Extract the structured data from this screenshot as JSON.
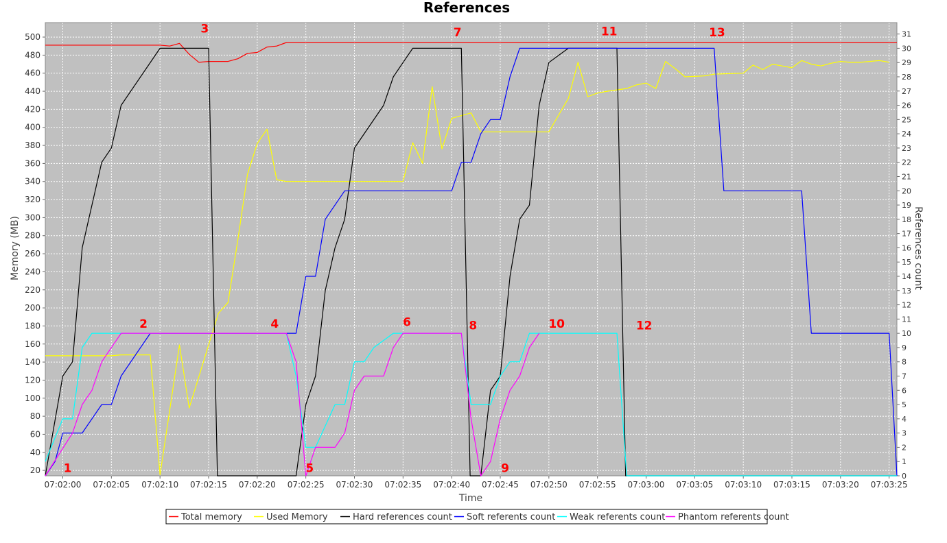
{
  "chart_data": {
    "type": "line",
    "title": "References",
    "xlabel": "Time",
    "ylabel_left": "Memory (MB)",
    "ylabel_right": "References count",
    "x_ticks": [
      "07:02:00",
      "07:02:05",
      "07:02:10",
      "07:02:15",
      "07:02:20",
      "07:02:25",
      "07:02:30",
      "07:02:35",
      "07:02:40",
      "07:02:45",
      "07:02:50",
      "07:02:55",
      "07:03:00",
      "07:03:05",
      "07:03:10",
      "07:03:15",
      "07:03:20",
      "07:03:25"
    ],
    "x_range_seconds": [
      -1.8,
      85.8
    ],
    "y_left_range": [
      14,
      516
    ],
    "y_left_ticks": [
      20,
      40,
      60,
      80,
      100,
      120,
      140,
      160,
      180,
      200,
      220,
      240,
      260,
      280,
      300,
      320,
      340,
      360,
      380,
      400,
      420,
      440,
      460,
      480,
      500
    ],
    "y_right_range": [
      0,
      31.8
    ],
    "y_right_ticks": [
      0,
      1,
      2,
      3,
      4,
      5,
      6,
      7,
      8,
      9,
      10,
      11,
      12,
      13,
      14,
      15,
      16,
      17,
      18,
      19,
      20,
      21,
      22,
      23,
      24,
      25,
      26,
      27,
      28,
      29,
      30,
      31
    ],
    "grid": true,
    "legend_position": "bottom",
    "series": [
      {
        "name": "Total memory",
        "axis": "left",
        "color": "#ff0000",
        "points": [
          [
            -1.8,
            491
          ],
          [
            10,
            491
          ],
          [
            11,
            490
          ],
          [
            12,
            493
          ],
          [
            13,
            481
          ],
          [
            14,
            472
          ],
          [
            15,
            473
          ],
          [
            17,
            473
          ],
          [
            18,
            476
          ],
          [
            19,
            482
          ],
          [
            20,
            483
          ],
          [
            21,
            489
          ],
          [
            22,
            490
          ],
          [
            23,
            494
          ],
          [
            85.8,
            494
          ]
        ]
      },
      {
        "name": "Used Memory",
        "axis": "left",
        "color": "#ffff00",
        "points": [
          [
            -1.8,
            147
          ],
          [
            5,
            147
          ],
          [
            6,
            148
          ],
          [
            7,
            148
          ],
          [
            9,
            148
          ],
          [
            10,
            15
          ],
          [
            12,
            159
          ],
          [
            13,
            89
          ],
          [
            16,
            194
          ],
          [
            17,
            206
          ],
          [
            18,
            275
          ],
          [
            19,
            348
          ],
          [
            20,
            382
          ],
          [
            21,
            398
          ],
          [
            22,
            342
          ],
          [
            23,
            340
          ],
          [
            35,
            340
          ],
          [
            36,
            383
          ],
          [
            37,
            360
          ],
          [
            38,
            445
          ],
          [
            39,
            376
          ],
          [
            40,
            410
          ],
          [
            42,
            416
          ],
          [
            43,
            395
          ],
          [
            50,
            395
          ],
          [
            52,
            432
          ],
          [
            53,
            472
          ],
          [
            54,
            434
          ],
          [
            55,
            438
          ],
          [
            56,
            440
          ],
          [
            58,
            443
          ],
          [
            59,
            447
          ],
          [
            60,
            449
          ],
          [
            61,
            443
          ],
          [
            62,
            473
          ],
          [
            63,
            465
          ],
          [
            64,
            456
          ],
          [
            66,
            457
          ],
          [
            67,
            459
          ],
          [
            70,
            460
          ],
          [
            71,
            469
          ],
          [
            72,
            464
          ],
          [
            73,
            470
          ],
          [
            74,
            468
          ],
          [
            75,
            466
          ],
          [
            76,
            474
          ],
          [
            77,
            470
          ],
          [
            78,
            468
          ],
          [
            79,
            471
          ],
          [
            80,
            473
          ],
          [
            81,
            472
          ],
          [
            82,
            472
          ],
          [
            83,
            473
          ],
          [
            84,
            474
          ],
          [
            85,
            472
          ]
        ]
      },
      {
        "name": "Hard references count",
        "axis": "right",
        "color": "#000000",
        "points": [
          [
            -1.8,
            0
          ],
          [
            0,
            7
          ],
          [
            1,
            8
          ],
          [
            2,
            16
          ],
          [
            4,
            22
          ],
          [
            5,
            23
          ],
          [
            6,
            26
          ],
          [
            10,
            30
          ],
          [
            15,
            30
          ],
          [
            15.9,
            0
          ],
          [
            24,
            0
          ],
          [
            25,
            5
          ],
          [
            26,
            7
          ],
          [
            27,
            13
          ],
          [
            28,
            16
          ],
          [
            29,
            18
          ],
          [
            30,
            23
          ],
          [
            33,
            26
          ],
          [
            34,
            28
          ],
          [
            35,
            29
          ],
          [
            36,
            30
          ],
          [
            41,
            30
          ],
          [
            41.9,
            0
          ],
          [
            43,
            0
          ],
          [
            44,
            6
          ],
          [
            45,
            7
          ],
          [
            46,
            14
          ],
          [
            47,
            18
          ],
          [
            48,
            19
          ],
          [
            49,
            26
          ],
          [
            50,
            29
          ],
          [
            52,
            30
          ],
          [
            57,
            30
          ],
          [
            57.9,
            0
          ],
          [
            85.8,
            0
          ]
        ]
      },
      {
        "name": "Soft referents count",
        "axis": "right",
        "color": "#0000ff",
        "points": [
          [
            -1.8,
            0
          ],
          [
            -0.8,
            1
          ],
          [
            0,
            3
          ],
          [
            2,
            3
          ],
          [
            4,
            5
          ],
          [
            5,
            5
          ],
          [
            6,
            7
          ],
          [
            9,
            10
          ],
          [
            24,
            10
          ],
          [
            25,
            14
          ],
          [
            26,
            14
          ],
          [
            27,
            18
          ],
          [
            29,
            20
          ],
          [
            40,
            20
          ],
          [
            41,
            22
          ],
          [
            42,
            22
          ],
          [
            43,
            24
          ],
          [
            44,
            25
          ],
          [
            45,
            25
          ],
          [
            46,
            28
          ],
          [
            47,
            30
          ],
          [
            67,
            30
          ],
          [
            68,
            20
          ],
          [
            76,
            20
          ],
          [
            77,
            10
          ],
          [
            85,
            10
          ],
          [
            85.8,
            0
          ]
        ]
      },
      {
        "name": "Weak referents count",
        "axis": "right",
        "color": "#00ffff",
        "points": [
          [
            -1.8,
            1
          ],
          [
            0,
            4
          ],
          [
            1,
            4
          ],
          [
            2,
            9
          ],
          [
            3,
            10
          ],
          [
            23,
            10
          ],
          [
            24,
            7
          ],
          [
            25,
            2
          ],
          [
            26,
            2
          ],
          [
            28,
            5
          ],
          [
            29,
            5
          ],
          [
            30,
            8
          ],
          [
            31,
            8
          ],
          [
            32,
            9
          ],
          [
            34,
            10
          ],
          [
            41,
            10
          ],
          [
            42,
            5
          ],
          [
            44,
            5
          ],
          [
            45,
            7
          ],
          [
            46,
            8
          ],
          [
            47,
            8
          ],
          [
            48,
            10
          ],
          [
            57,
            10
          ],
          [
            58,
            0
          ],
          [
            85.8,
            0
          ]
        ]
      },
      {
        "name": "Phantom referents count",
        "axis": "right",
        "color": "#ff00ff",
        "points": [
          [
            -1.8,
            0
          ],
          [
            1,
            3
          ],
          [
            2,
            5
          ],
          [
            3,
            6
          ],
          [
            4,
            8
          ],
          [
            6,
            10
          ],
          [
            23,
            10
          ],
          [
            24,
            8
          ],
          [
            25,
            0
          ],
          [
            26,
            2
          ],
          [
            28,
            2
          ],
          [
            29,
            3
          ],
          [
            30,
            6
          ],
          [
            31,
            7
          ],
          [
            33,
            7
          ],
          [
            34,
            9
          ],
          [
            35,
            10
          ],
          [
            41,
            10
          ],
          [
            42,
            4
          ],
          [
            43,
            0
          ],
          [
            44,
            1
          ],
          [
            45,
            4
          ],
          [
            46,
            6
          ],
          [
            47,
            7
          ],
          [
            48,
            9
          ],
          [
            49,
            10
          ]
        ]
      }
    ],
    "annotations": [
      {
        "label": "1",
        "x": 0.5,
        "y": 18
      },
      {
        "label": "2",
        "x": 8.3,
        "y": 178
      },
      {
        "label": "3",
        "x": 14.6,
        "y": 505
      },
      {
        "label": "4",
        "x": 21.8,
        "y": 178
      },
      {
        "label": "5",
        "x": 25.4,
        "y": 18
      },
      {
        "label": "6",
        "x": 35.4,
        "y": 180
      },
      {
        "label": "7",
        "x": 40.6,
        "y": 501
      },
      {
        "label": "8",
        "x": 42.2,
        "y": 176
      },
      {
        "label": "9",
        "x": 45.5,
        "y": 18
      },
      {
        "label": "10",
        "x": 50.8,
        "y": 178
      },
      {
        "label": "11",
        "x": 56.2,
        "y": 502
      },
      {
        "label": "12",
        "x": 59.8,
        "y": 176
      },
      {
        "label": "13",
        "x": 67.3,
        "y": 501
      }
    ]
  }
}
